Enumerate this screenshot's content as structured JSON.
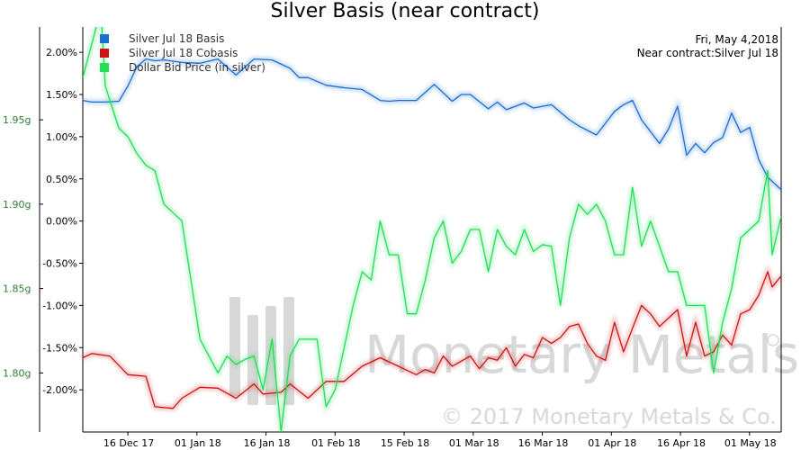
{
  "chart_data": {
    "type": "line",
    "title": "Silver Basis (near contract)",
    "info_date": "Fri, May 4,2018",
    "info_contract": "Near contract:Silver Jul 18",
    "watermark_brand": "Monetary Metals",
    "watermark_copyright": "© 2017 Monetary Metals & Co.",
    "x_labels": [
      "16 Dec 17",
      "01 Jan 18",
      "16 Jan 18",
      "01 Feb 18",
      "15 Feb 18",
      "01 Mar 18",
      "16 Mar 18",
      "01 Apr 18",
      "16 Apr 18",
      "01 May 18"
    ],
    "x_range": [
      -10,
      145
    ],
    "right_axis": {
      "ylim": [
        -2.5,
        2.3
      ],
      "ticks": [
        2.0,
        1.5,
        1.0,
        0.5,
        0.0,
        -0.5,
        -1.0,
        -1.5,
        -2.0
      ],
      "tick_labels": [
        "2.00%",
        "1.50%",
        "1.00%",
        "0.50%",
        "0.00%",
        "-0.50%",
        "-1.00%",
        "-1.50%",
        "-2.00%"
      ]
    },
    "left_axis": {
      "ylim": [
        1.765,
        2.005
      ],
      "ticks": [
        1.95,
        1.9,
        1.85,
        1.8
      ],
      "tick_labels": [
        "1.95g",
        "1.90g",
        "1.85g",
        "1.80g"
      ]
    },
    "series": [
      {
        "name": "Silver Jul 18 Basis",
        "color": "#1a6fd0",
        "axis": "right",
        "x": [
          -10,
          -8,
          -5,
          -2,
          0,
          2,
          4,
          6,
          8,
          12,
          16,
          20,
          24,
          28,
          32,
          36,
          38,
          40,
          44,
          48,
          52,
          56,
          58,
          60,
          64,
          68,
          72,
          74,
          76,
          80,
          82,
          84,
          88,
          90,
          94,
          98,
          100,
          104,
          108,
          110,
          112,
          114,
          118,
          120,
          122,
          124,
          126,
          128,
          130,
          132,
          134,
          136,
          138,
          140,
          142,
          145
        ],
        "y": [
          1.43,
          1.41,
          1.41,
          1.42,
          1.6,
          1.83,
          1.92,
          1.9,
          1.91,
          1.88,
          1.87,
          1.92,
          1.73,
          1.92,
          1.91,
          1.81,
          1.7,
          1.7,
          1.61,
          1.58,
          1.56,
          1.43,
          1.42,
          1.43,
          1.43,
          1.62,
          1.42,
          1.5,
          1.5,
          1.33,
          1.41,
          1.32,
          1.4,
          1.34,
          1.38,
          1.2,
          1.13,
          1.02,
          1.3,
          1.38,
          1.43,
          1.2,
          0.92,
          1.09,
          1.36,
          0.78,
          0.92,
          0.81,
          0.93,
          0.99,
          1.28,
          1.05,
          1.11,
          0.73,
          0.52,
          0.37
        ]
      },
      {
        "name": "Silver Jul 18 Cobasis",
        "color": "#cc1414",
        "axis": "right",
        "x": [
          -10,
          -8,
          -4,
          0,
          2,
          4,
          6,
          10,
          12,
          16,
          20,
          24,
          28,
          30,
          34,
          36,
          40,
          44,
          48,
          52,
          56,
          60,
          64,
          66,
          68,
          70,
          72,
          76,
          78,
          80,
          82,
          84,
          86,
          88,
          90,
          92,
          94,
          96,
          98,
          100,
          102,
          104,
          106,
          108,
          110,
          112,
          114,
          116,
          118,
          120,
          122,
          124,
          126,
          128,
          130,
          132,
          134,
          136,
          138,
          140,
          142,
          143,
          145
        ],
        "y": [
          -1.62,
          -1.57,
          -1.6,
          -1.82,
          -1.83,
          -1.84,
          -2.2,
          -2.22,
          -2.1,
          -1.97,
          -1.98,
          -2.1,
          -1.93,
          -2.05,
          -2.03,
          -1.93,
          -2.1,
          -1.9,
          -1.9,
          -1.72,
          -1.62,
          -1.72,
          -1.82,
          -1.76,
          -1.8,
          -1.6,
          -1.72,
          -1.6,
          -1.75,
          -1.62,
          -1.65,
          -1.5,
          -1.72,
          -1.58,
          -1.62,
          -1.38,
          -1.45,
          -1.38,
          -1.25,
          -1.22,
          -1.45,
          -1.6,
          -1.65,
          -1.2,
          -1.55,
          -1.27,
          -1.0,
          -1.1,
          -1.25,
          -1.15,
          -1.05,
          -1.6,
          -1.2,
          -1.6,
          -1.55,
          -1.35,
          -1.47,
          -1.1,
          -1.05,
          -0.88,
          -0.6,
          -0.78,
          -0.65
        ]
      },
      {
        "name": "Dollar Bid Price (in silver)",
        "color": "#22dd55",
        "axis": "left",
        "x": [
          -10,
          -6,
          -5,
          -2,
          0,
          2,
          4,
          6,
          8,
          10,
          12,
          16,
          20,
          22,
          24,
          26,
          28,
          30,
          32,
          34,
          36,
          38,
          40,
          42,
          44,
          46,
          48,
          50,
          52,
          54,
          56,
          58,
          60,
          62,
          64,
          66,
          68,
          70,
          72,
          74,
          76,
          78,
          80,
          82,
          84,
          86,
          88,
          90,
          92,
          94,
          96,
          98,
          100,
          102,
          104,
          106,
          108,
          110,
          112,
          114,
          116,
          118,
          120,
          122,
          124,
          126,
          128,
          130,
          132,
          134,
          136,
          138,
          140,
          142,
          143,
          145
        ],
        "y": [
          1.975,
          2.015,
          1.97,
          1.945,
          1.94,
          1.93,
          1.923,
          1.92,
          1.9,
          1.895,
          1.89,
          1.82,
          1.8,
          1.81,
          1.805,
          1.808,
          1.81,
          1.79,
          1.82,
          1.765,
          1.81,
          1.82,
          1.82,
          1.82,
          1.78,
          1.79,
          1.815,
          1.84,
          1.86,
          1.855,
          1.89,
          1.87,
          1.87,
          1.835,
          1.835,
          1.855,
          1.88,
          1.89,
          1.865,
          1.872,
          1.885,
          1.885,
          1.86,
          1.885,
          1.875,
          1.87,
          1.885,
          1.872,
          1.876,
          1.875,
          1.84,
          1.88,
          1.9,
          1.894,
          1.9,
          1.89,
          1.87,
          1.87,
          1.91,
          1.875,
          1.89,
          1.875,
          1.86,
          1.86,
          1.84,
          1.84,
          1.84,
          1.8,
          1.83,
          1.85,
          1.88,
          1.885,
          1.89,
          1.92,
          1.87,
          1.893
        ]
      }
    ]
  }
}
